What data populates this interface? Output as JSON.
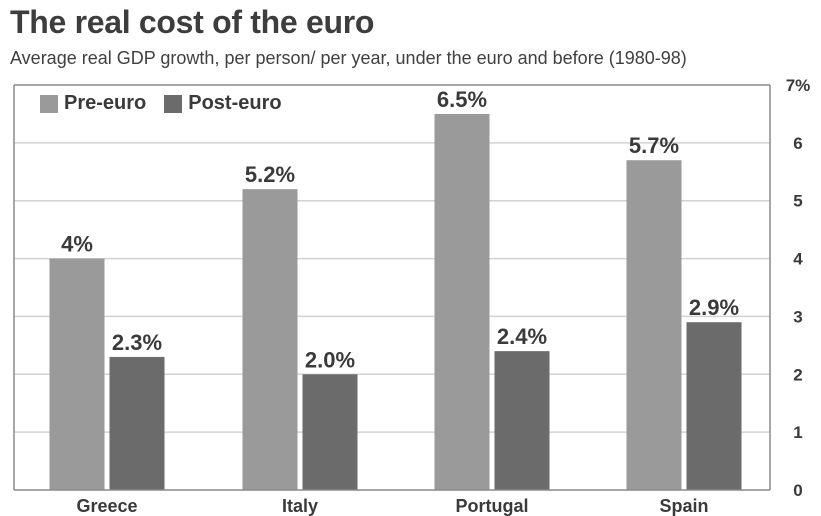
{
  "title": "The real cost of the euro",
  "subtitle": "Average real GDP growth, per person/ per year, under the euro and before (1980-98)",
  "colors": {
    "pre": "#9a9a9a",
    "post": "#6b6b6b",
    "grid": "#d2d2d2",
    "plot_border": "#8a8a8a",
    "text": "#3a3a3a"
  },
  "chart_data": {
    "type": "bar",
    "title": "The real cost of the euro",
    "subtitle": "Average real GDP growth, per person/ per year, under the euro and before (1980-98)",
    "categories": [
      "Greece",
      "Italy",
      "Portugal",
      "Spain"
    ],
    "series": [
      {
        "name": "Pre-euro",
        "values": [
          4.0,
          5.2,
          6.5,
          5.7
        ],
        "labels": [
          "4%",
          "5.2%",
          "6.5%",
          "5.7%"
        ]
      },
      {
        "name": "Post-euro",
        "values": [
          2.3,
          2.0,
          2.4,
          2.9
        ],
        "labels": [
          "2.3%",
          "2.0%",
          "2.4%",
          "2.9%"
        ]
      }
    ],
    "ylim": [
      0,
      7
    ],
    "yticks": [
      "0",
      "1",
      "2",
      "3",
      "4",
      "5",
      "6",
      "7%"
    ],
    "y_axis_side": "right",
    "grid": true,
    "legend_position": "top-left"
  }
}
